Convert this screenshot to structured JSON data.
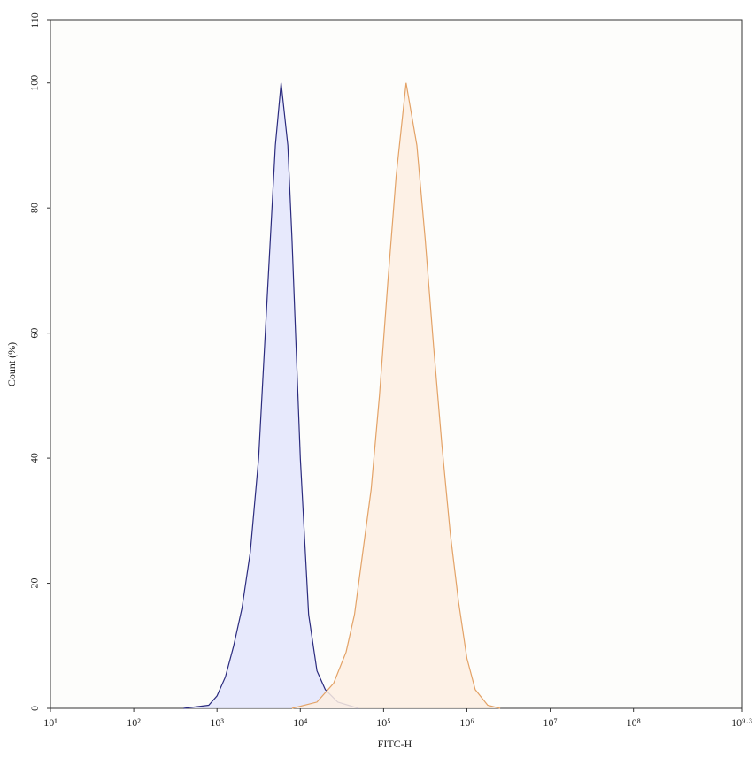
{
  "chart_data": {
    "type": "histogram-overlay",
    "xlabel": "FITC-H",
    "ylabel": "Count (%)",
    "xscale": "log",
    "xlim": [
      10,
      1995262315
    ],
    "xticks": [
      {
        "value": 10,
        "label": "10¹"
      },
      {
        "value": 100,
        "label": "10²"
      },
      {
        "value": 1000,
        "label": "10³"
      },
      {
        "value": 10000,
        "label": "10⁴"
      },
      {
        "value": 100000,
        "label": "10⁵"
      },
      {
        "value": 1000000,
        "label": "10⁶"
      },
      {
        "value": 10000000,
        "label": "10⁷"
      },
      {
        "value": 100000000,
        "label": "10⁸"
      },
      {
        "value": 1995262315,
        "label": "10⁹·³"
      }
    ],
    "ylim": [
      0,
      110
    ],
    "yticks": [
      0,
      20,
      40,
      60,
      80,
      100,
      110
    ],
    "series": [
      {
        "color": "#2b2b7e",
        "fill": "#e3e5fb",
        "x": [
          398,
          794,
          1000,
          1259,
          1585,
          1995,
          2512,
          3162,
          3981,
          5012,
          5888,
          7079,
          7943,
          10000,
          12589,
          15849,
          19953,
          28184,
          50119
        ],
        "values": [
          0,
          0.5,
          2,
          5,
          10,
          16,
          25,
          40,
          65,
          90,
          100,
          90,
          75,
          40,
          15,
          6,
          3,
          1,
          0
        ]
      },
      {
        "color": "#e3a266",
        "fill": "#fdefe2",
        "x": [
          7943,
          15849,
          25119,
          35481,
          44668,
          56234,
          70795,
          89125,
          112202,
          141254,
          186209,
          251189,
          316228,
          398107,
          501187,
          630957,
          794328,
          1000000,
          1258925,
          1778279,
          2511886
        ],
        "values": [
          0,
          1,
          4,
          9,
          15,
          25,
          35,
          50,
          68,
          85,
          100,
          90,
          75,
          58,
          42,
          28,
          17,
          8,
          3,
          0.5,
          0
        ]
      }
    ]
  }
}
